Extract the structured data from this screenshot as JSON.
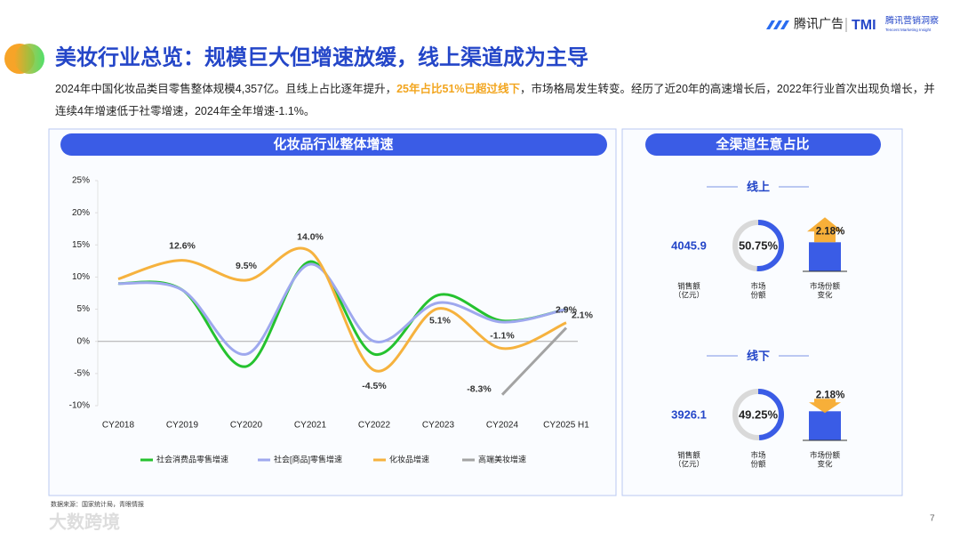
{
  "header": {
    "title": "美妆行业总览：规模巨大但增速放缓，线上渠道成为主导",
    "brand": "腾讯广告",
    "brand2": "腾讯营销洞察",
    "brand2_sub": "Tencent Marketing Insight"
  },
  "description": {
    "before": "2024年中国化妆品类目零售整体规模4,357亿。且线上占比逐年提升，",
    "highlight": "25年占比51%已超过线下",
    "after": "，市场格局发生转变。经历了近20年的高速增长后，2022年行业首次出现负增长，并连续4年增速低于社零增速，2024年全年增速-1.1%。"
  },
  "chart_data": {
    "type": "line",
    "title": "化妆品行业整体增速",
    "categories": [
      "CY2018",
      "CY2019",
      "CY2020",
      "CY2021",
      "CY2022",
      "CY2023",
      "CY2024",
      "CY2025 H1"
    ],
    "series": [
      {
        "name": "社会消费品零售增速",
        "color": "#25c22f",
        "values": [
          9.0,
          8.0,
          -3.9,
          12.4,
          -2.0,
          7.2,
          3.2,
          5.0
        ]
      },
      {
        "name": "社会[商品]零售增速",
        "color": "#9ea8ee",
        "values": [
          9.0,
          8.0,
          -2.0,
          12.0,
          0.0,
          6.0,
          3.0,
          5.0
        ]
      },
      {
        "name": "化妆品增速",
        "color": "#f6b23e",
        "values": [
          9.7,
          12.6,
          9.5,
          14.0,
          -4.5,
          5.1,
          -1.1,
          2.9
        ],
        "value_labels": [
          null,
          "12.6%",
          "9.5%",
          "14.0%",
          "-4.5%",
          "5.1%",
          "-1.1%",
          "2.9%"
        ]
      },
      {
        "name": "高端美妆增速",
        "color": "#a3a3a3",
        "values": [
          null,
          null,
          null,
          null,
          null,
          null,
          -8.3,
          2.1
        ],
        "value_labels": [
          null,
          null,
          null,
          null,
          null,
          null,
          "-8.3%",
          "2.1%"
        ]
      }
    ],
    "ylim": [
      -10,
      25
    ],
    "yticks": [
      {
        "value": 25,
        "label": "25%"
      },
      {
        "value": 20,
        "label": "20%"
      },
      {
        "value": 15,
        "label": "15%"
      },
      {
        "value": 10,
        "label": "10%"
      },
      {
        "value": 5,
        "label": "5%"
      },
      {
        "value": 0,
        "label": "0%"
      },
      {
        "value": -5,
        "label": "-5%"
      },
      {
        "value": -10,
        "label": "-10%"
      }
    ],
    "grid": false,
    "legend": "bottom"
  },
  "channel_panel": {
    "title": "全渠道生意占比",
    "labels": {
      "sales": [
        "销售额",
        "（亿元）"
      ],
      "share": [
        "市场",
        "份额"
      ],
      "change": [
        "市场份额",
        "变化"
      ]
    },
    "channels": [
      {
        "name": "线上",
        "sales": 4045.9,
        "share": 50.75,
        "share_label": "50.75%",
        "change": 2.18,
        "change_label": "2.18%",
        "direction": "up"
      },
      {
        "name": "线下",
        "sales": 3926.1,
        "share": 49.25,
        "share_label": "49.25%",
        "change": 2.18,
        "change_label": "2.18%",
        "direction": "down"
      }
    ]
  },
  "source": "数据来源：国家统计局，青眼情报",
  "page_number": "7",
  "watermark": "大数跨境"
}
